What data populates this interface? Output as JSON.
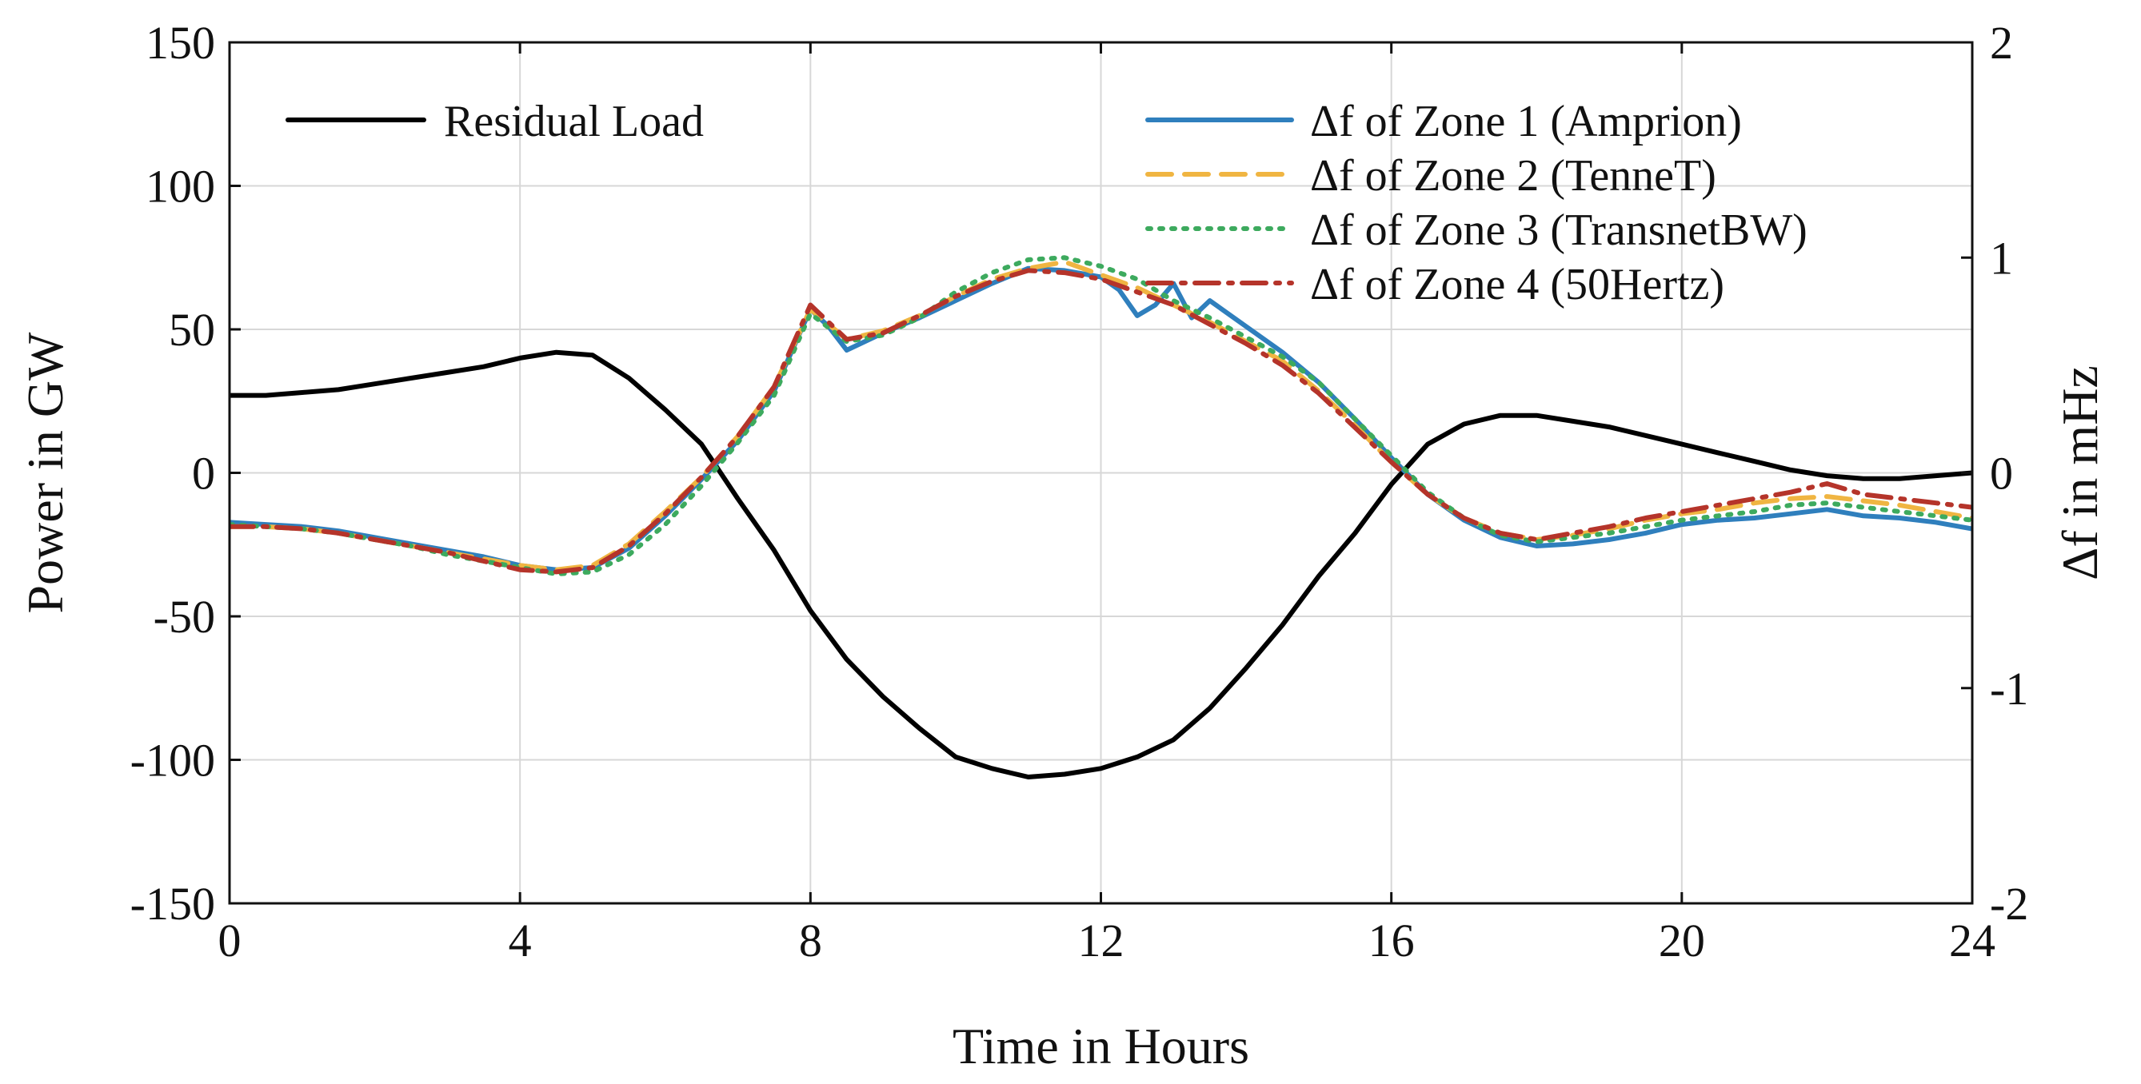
{
  "chart_data": {
    "type": "line",
    "title": "",
    "xlabel": "Time in Hours",
    "ylabel": "Power in GW",
    "y2label": "Δf in mHz",
    "xlim": [
      0,
      24
    ],
    "ylim": [
      -150,
      150
    ],
    "y2lim": [
      -2,
      2
    ],
    "grid": true,
    "xticks": [
      "0",
      "4",
      "8",
      "12",
      "16",
      "20",
      "24"
    ],
    "xtick_values": [
      0,
      4,
      8,
      12,
      16,
      20,
      24
    ],
    "yticks": [
      "150",
      "100",
      "50",
      "0",
      "-50",
      "-100",
      "-150"
    ],
    "ytick_values": [
      150,
      100,
      50,
      0,
      -50,
      -100,
      -150
    ],
    "y2ticks": [
      "2",
      "1",
      "0",
      "-1",
      "-2"
    ],
    "y2tick_values": [
      2,
      1,
      0,
      -1,
      -2
    ],
    "series": [
      {
        "name": "Residual Load",
        "axis": "left",
        "color": "#000000",
        "style": "solid",
        "x": [
          0,
          0.5,
          1,
          1.5,
          2,
          2.5,
          3,
          3.5,
          4,
          4.5,
          5,
          5.5,
          6,
          6.5,
          7,
          7.5,
          8,
          8.5,
          9,
          9.5,
          10,
          10.5,
          11,
          11.5,
          12,
          12.5,
          13,
          13.5,
          14,
          14.5,
          15,
          15.5,
          16,
          16.5,
          17,
          17.5,
          18,
          18.5,
          19,
          19.5,
          20,
          20.5,
          21,
          21.5,
          22,
          22.5,
          23,
          23.5,
          24
        ],
        "values": [
          27,
          27,
          28,
          29,
          31,
          33,
          35,
          37,
          40,
          42,
          41,
          33,
          22,
          10,
          -9,
          -27,
          -48,
          -65,
          -78,
          -89,
          -99,
          -103,
          -106,
          -105,
          -103,
          -99,
          -93,
          -82,
          -68,
          -53,
          -36,
          -21,
          -4,
          10,
          17,
          20,
          20,
          18,
          16,
          13,
          10,
          7,
          4,
          1,
          -1,
          -2,
          -2,
          -1,
          0
        ]
      },
      {
        "name": "Δf of Zone 1 (Amprion)",
        "axis": "right",
        "color": "#2f7fbd",
        "style": "solid",
        "x": [
          0,
          0.5,
          1,
          1.5,
          2,
          2.5,
          3,
          3.5,
          4,
          4.5,
          5,
          5.5,
          6,
          6.5,
          7,
          7.5,
          8,
          8.25,
          8.5,
          9,
          9.5,
          10,
          10.5,
          11,
          11.5,
          12,
          12.25,
          12.5,
          12.75,
          13,
          13.25,
          13.5,
          14,
          14.5,
          15,
          15.5,
          16,
          16.5,
          17,
          17.5,
          18,
          18.5,
          19,
          19.5,
          20,
          20.5,
          21,
          21.5,
          22,
          22.5,
          23,
          23.5,
          24
        ],
        "values": [
          -0.23,
          -0.24,
          -0.25,
          -0.27,
          -0.3,
          -0.33,
          -0.36,
          -0.39,
          -0.43,
          -0.45,
          -0.44,
          -0.35,
          -0.2,
          -0.03,
          0.15,
          0.38,
          0.76,
          0.68,
          0.57,
          0.65,
          0.72,
          0.8,
          0.88,
          0.95,
          0.94,
          0.91,
          0.85,
          0.73,
          0.78,
          0.88,
          0.72,
          0.8,
          0.68,
          0.56,
          0.42,
          0.25,
          0.07,
          -0.1,
          -0.22,
          -0.3,
          -0.34,
          -0.33,
          -0.31,
          -0.28,
          -0.24,
          -0.22,
          -0.21,
          -0.19,
          -0.17,
          -0.2,
          -0.21,
          -0.23,
          -0.26
        ]
      },
      {
        "name": "Δf of Zone 2 (TenneT)",
        "axis": "right",
        "color": "#f0b542",
        "style": "dashed",
        "x": [
          0,
          0.5,
          1,
          1.5,
          2,
          2.5,
          3,
          3.5,
          4,
          4.5,
          5,
          5.5,
          6,
          6.5,
          7,
          7.5,
          8,
          8.5,
          9,
          9.5,
          10,
          10.5,
          11,
          11.5,
          12,
          12.5,
          13,
          13.5,
          14,
          14.5,
          15,
          15.5,
          16,
          16.5,
          17,
          17.5,
          18,
          18.5,
          19,
          19.5,
          20,
          20.5,
          21,
          21.5,
          22,
          22.5,
          23,
          23.5,
          24
        ],
        "values": [
          -0.25,
          -0.25,
          -0.26,
          -0.28,
          -0.31,
          -0.34,
          -0.37,
          -0.4,
          -0.43,
          -0.45,
          -0.43,
          -0.33,
          -0.18,
          -0.02,
          0.17,
          0.4,
          0.76,
          0.62,
          0.66,
          0.73,
          0.82,
          0.9,
          0.95,
          0.98,
          0.92,
          0.86,
          0.78,
          0.7,
          0.61,
          0.52,
          0.38,
          0.22,
          0.05,
          -0.1,
          -0.21,
          -0.28,
          -0.31,
          -0.29,
          -0.26,
          -0.22,
          -0.19,
          -0.17,
          -0.14,
          -0.12,
          -0.11,
          -0.13,
          -0.15,
          -0.18,
          -0.21
        ]
      },
      {
        "name": "Δf of Zone 3 (TransnetBW)",
        "axis": "right",
        "color": "#3daa5e",
        "style": "dotted",
        "x": [
          0,
          0.5,
          1,
          1.5,
          2,
          2.5,
          3,
          3.5,
          4,
          4.5,
          5,
          5.5,
          6,
          6.5,
          7,
          7.5,
          8,
          8.5,
          9,
          9.5,
          10,
          10.5,
          11,
          11.5,
          12,
          12.5,
          13,
          13.5,
          14,
          14.5,
          15,
          15.5,
          16,
          16.5,
          17,
          17.5,
          18,
          18.5,
          19,
          19.5,
          20,
          20.5,
          21,
          21.5,
          22,
          22.5,
          23,
          23.5,
          24
        ],
        "values": [
          -0.24,
          -0.25,
          -0.26,
          -0.28,
          -0.31,
          -0.34,
          -0.38,
          -0.41,
          -0.44,
          -0.47,
          -0.46,
          -0.38,
          -0.24,
          -0.06,
          0.14,
          0.36,
          0.74,
          0.61,
          0.64,
          0.72,
          0.84,
          0.93,
          0.99,
          1.0,
          0.96,
          0.9,
          0.8,
          0.72,
          0.63,
          0.54,
          0.42,
          0.25,
          0.08,
          -0.09,
          -0.21,
          -0.29,
          -0.32,
          -0.3,
          -0.28,
          -0.25,
          -0.22,
          -0.2,
          -0.18,
          -0.15,
          -0.14,
          -0.16,
          -0.18,
          -0.2,
          -0.22
        ]
      },
      {
        "name": "Δf of Zone 4 (50Hertz)",
        "axis": "right",
        "color": "#b5342a",
        "style": "dashdot",
        "x": [
          0,
          0.5,
          1,
          1.5,
          2,
          2.5,
          3,
          3.5,
          4,
          4.5,
          5,
          5.5,
          6,
          6.5,
          7,
          7.5,
          8,
          8.5,
          9,
          9.5,
          10,
          10.5,
          11,
          11.5,
          12,
          12.5,
          13,
          13.5,
          14,
          14.5,
          15,
          15.5,
          16,
          16.5,
          17,
          17.5,
          18,
          18.5,
          19,
          19.5,
          20,
          20.5,
          21,
          21.5,
          22,
          22.5,
          23,
          23.5,
          24
        ],
        "values": [
          -0.25,
          -0.25,
          -0.26,
          -0.28,
          -0.31,
          -0.34,
          -0.37,
          -0.41,
          -0.45,
          -0.46,
          -0.44,
          -0.34,
          -0.19,
          -0.02,
          0.17,
          0.4,
          0.78,
          0.62,
          0.65,
          0.73,
          0.82,
          0.89,
          0.94,
          0.93,
          0.9,
          0.84,
          0.78,
          0.69,
          0.6,
          0.5,
          0.37,
          0.21,
          0.05,
          -0.1,
          -0.21,
          -0.28,
          -0.31,
          -0.28,
          -0.25,
          -0.21,
          -0.18,
          -0.15,
          -0.12,
          -0.09,
          -0.05,
          -0.1,
          -0.12,
          -0.14,
          -0.16
        ]
      }
    ],
    "legend": {
      "left_entries": [
        "Residual Load"
      ],
      "right_entries": [
        "Δf of Zone 1 (Amprion)",
        "Δf of Zone 2 (TenneT)",
        "Δf of Zone 3 (TransnetBW)",
        "Δf of Zone 4 (50Hertz)"
      ],
      "placement": "top"
    }
  }
}
